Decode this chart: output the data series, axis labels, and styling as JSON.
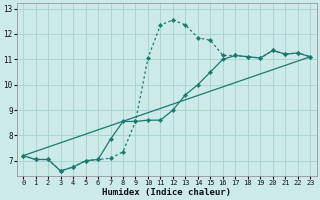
{
  "xlabel": "Humidex (Indice chaleur)",
  "xlim": [
    -0.5,
    23.5
  ],
  "ylim": [
    6.4,
    13.2
  ],
  "yticks": [
    7,
    8,
    9,
    10,
    11,
    12,
    13
  ],
  "xticks": [
    0,
    1,
    2,
    3,
    4,
    5,
    6,
    7,
    8,
    9,
    10,
    11,
    12,
    13,
    14,
    15,
    16,
    17,
    18,
    19,
    20,
    21,
    22,
    23
  ],
  "bg_color": "#cceae8",
  "grid_color": "#aad4d2",
  "line_color": "#1a7a6e",
  "line1_x": [
    0,
    1,
    2,
    3,
    4,
    5,
    6,
    7,
    8,
    9,
    10,
    11,
    12,
    13,
    14,
    15,
    16,
    17,
    18,
    19,
    20,
    21,
    22,
    23
  ],
  "line1_y": [
    7.2,
    7.05,
    7.05,
    6.6,
    6.75,
    7.0,
    7.05,
    7.1,
    7.35,
    8.55,
    11.05,
    12.35,
    12.55,
    12.35,
    11.85,
    11.75,
    11.15,
    11.15,
    11.1,
    11.05,
    11.35,
    11.2,
    11.25,
    11.1
  ],
  "line2_x": [
    0,
    1,
    2,
    3,
    4,
    5,
    6,
    7,
    8,
    9,
    10,
    11,
    12,
    13,
    14,
    15,
    16,
    17,
    18,
    19,
    20,
    21,
    22,
    23
  ],
  "line2_y": [
    7.2,
    7.05,
    7.05,
    6.6,
    6.75,
    7.0,
    7.05,
    7.85,
    8.55,
    8.55,
    8.6,
    8.6,
    9.0,
    9.6,
    10.0,
    10.5,
    11.0,
    11.15,
    11.1,
    11.05,
    11.35,
    11.2,
    11.25,
    11.1
  ],
  "line3_x": [
    0,
    23
  ],
  "line3_y": [
    7.2,
    11.1
  ]
}
